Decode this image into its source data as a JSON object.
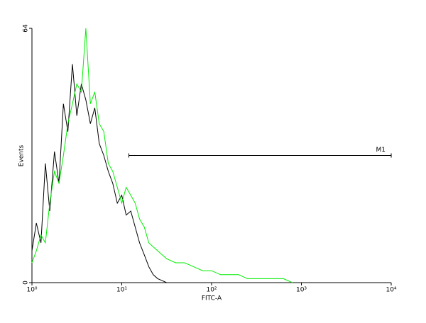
{
  "chart_data": {
    "type": "line",
    "x_axis_label": "FITC-A",
    "y_axis_label": "Events",
    "xscale": "log",
    "xlim": [
      1,
      10000
    ],
    "ylim": [
      0,
      64
    ],
    "xticks": [
      {
        "value": 1,
        "label": "10⁰"
      },
      {
        "value": 10,
        "label": "10¹"
      },
      {
        "value": 100,
        "label": "10²"
      },
      {
        "value": 1000,
        "label": "10³"
      },
      {
        "value": 10000,
        "label": "10⁴"
      }
    ],
    "yticks": [
      0,
      64
    ],
    "series": [
      {
        "name": "black",
        "color": "#000000",
        "x": [
          1,
          1.12,
          1.26,
          1.41,
          1.58,
          1.78,
          2,
          2.24,
          2.51,
          2.82,
          3.16,
          3.55,
          3.98,
          4.47,
          5.01,
          5.62,
          6.31,
          7.08,
          7.94,
          8.91,
          10,
          11.2,
          12.6,
          14.1,
          15.8,
          17.8,
          20,
          22.4,
          25.1,
          28.2,
          31.6
        ],
        "values": [
          8,
          15,
          10,
          30,
          18,
          33,
          25,
          45,
          38,
          55,
          42,
          50,
          46,
          40,
          44,
          35,
          32,
          28,
          25,
          20,
          22,
          17,
          18,
          14,
          10,
          7,
          4,
          2,
          1,
          0.5,
          0
        ]
      },
      {
        "name": "green",
        "color": "#00ee00",
        "x": [
          1,
          1.12,
          1.26,
          1.41,
          1.58,
          1.78,
          2,
          2.24,
          2.51,
          2.82,
          3.16,
          3.55,
          3.98,
          4.47,
          5.01,
          5.62,
          6.31,
          7.08,
          7.94,
          8.91,
          10,
          11.2,
          12.6,
          14.1,
          15.8,
          17.8,
          20,
          22.4,
          25.1,
          28.2,
          31.6,
          39.8,
          50.1,
          63.1,
          79.4,
          100,
          126,
          158,
          200,
          251,
          316,
          398,
          501,
          631,
          794
        ],
        "values": [
          5,
          8,
          12,
          10,
          20,
          28,
          25,
          32,
          40,
          45,
          50,
          48,
          64,
          45,
          48,
          40,
          38,
          30,
          28,
          24,
          20,
          24,
          22,
          20,
          16,
          14,
          10,
          9,
          8,
          7,
          6,
          5,
          5,
          4,
          3,
          3,
          2,
          2,
          2,
          1,
          1,
          1,
          1,
          1,
          0
        ]
      }
    ],
    "marker": {
      "label": "M1",
      "range": [
        12,
        10000
      ],
      "y": 32
    }
  }
}
